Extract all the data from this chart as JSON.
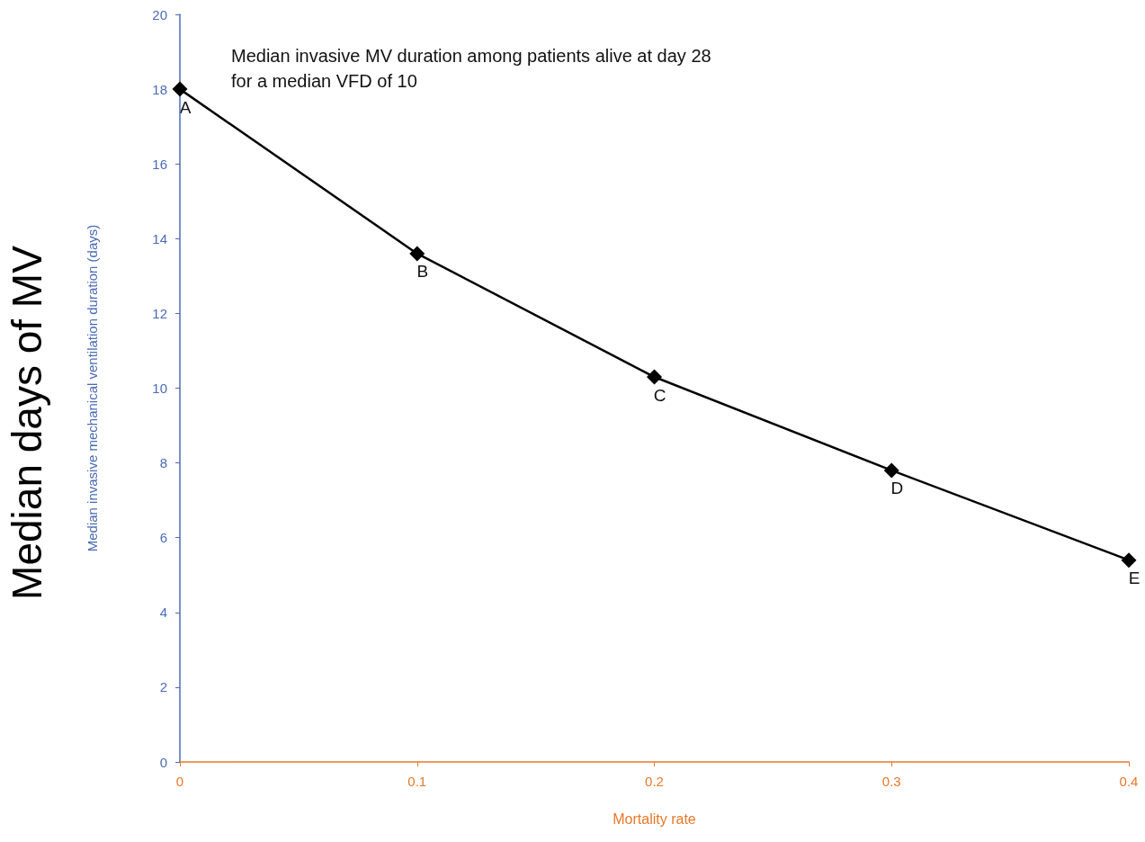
{
  "chart_data": {
    "type": "line",
    "xlabel": "Mortality rate",
    "ylabel": "Median invasive mechanical ventilation duration (days)",
    "x": [
      0,
      0.1,
      0.2,
      0.3,
      0.4
    ],
    "series": [
      {
        "color": "#000000",
        "values": [
          18,
          13.6,
          10.3,
          7.8,
          5.4
        ]
      }
    ],
    "xlim": [
      0,
      0.4
    ],
    "xticks": [
      0,
      0.1,
      0.2,
      0.3,
      0.4
    ],
    "ylim": [
      0,
      20
    ],
    "yticks": [
      0,
      2,
      4,
      6,
      8,
      10,
      12,
      14,
      16,
      18,
      20
    ],
    "grid": false,
    "marker": "diamond",
    "line_style": "solid",
    "annotations": [
      "Median invasive MV duration among patients alive at day 28\nfor a median VFD of 10",
      "Median days of MV",
      {
        "text": "A",
        "x": 0,
        "y": 18
      },
      {
        "text": "B",
        "x": 0.1,
        "y": 13.6
      },
      {
        "text": "C",
        "x": 0.2,
        "y": 10.3
      },
      {
        "text": "D",
        "x": 0.3,
        "y": 7.8
      },
      {
        "text": "E",
        "x": 0.4,
        "y": 5.4
      }
    ]
  }
}
